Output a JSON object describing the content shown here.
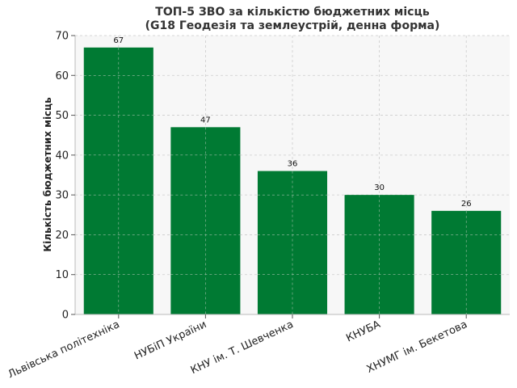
{
  "chart_data": {
    "type": "bar",
    "title_line1": "ТОП-5 ЗВО за кількістю бюджетних місць",
    "title_line2": "(G18 Геодезія та землеустрій, денна форма)",
    "xlabel": "",
    "ylabel": "Кількість бюджетних місць",
    "categories": [
      "Львівська політехніка",
      "НУБіП України",
      "КНУ ім. Т. Шевченка",
      "КНУБА",
      "ХНУМГ ім. Бекетова"
    ],
    "values": [
      67,
      47,
      36,
      30,
      26
    ],
    "ylim": [
      0,
      70
    ],
    "yticks": [
      0,
      10,
      20,
      30,
      40,
      50,
      60,
      70
    ],
    "grid": true,
    "bar_color": "#007a33",
    "background_color": "#f7f7f7"
  }
}
